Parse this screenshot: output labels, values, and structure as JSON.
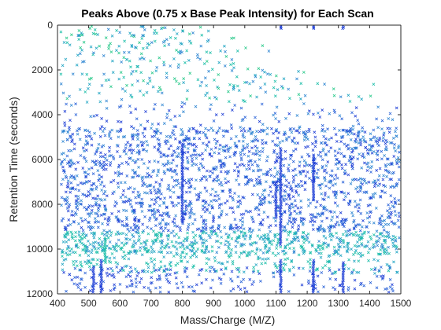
{
  "chart_data": {
    "type": "scatter",
    "title": "Peaks Above (0.75 x Base Peak Intensity) for Each Scan",
    "xlabel": "Mass/Charge (M/Z)",
    "ylabel": "Retention Time (seconds)",
    "xlim": [
      400,
      1500
    ],
    "ylim": [
      0,
      12000
    ],
    "y_reversed": true,
    "grid": false,
    "marker": "x",
    "colormap": [
      "#1f3fd6",
      "#2a63d8",
      "#2f86d2",
      "#24a6c4",
      "#1fbfaa",
      "#29c98a"
    ],
    "xticks": [
      400,
      500,
      600,
      700,
      800,
      900,
      1000,
      1100,
      1200,
      1300,
      1400,
      1500
    ],
    "yticks": [
      0,
      2000,
      4000,
      6000,
      8000,
      10000,
      12000
    ],
    "vertical_streaks": [
      {
        "x": 515,
        "y": [
          10800,
          12000
        ]
      },
      {
        "x": 540,
        "y": [
          10500,
          12000
        ]
      },
      {
        "x": 553,
        "y": [
          9500,
          10600
        ]
      },
      {
        "x": 800,
        "y": [
          5300,
          8800
        ]
      },
      {
        "x": 1115,
        "y": [
          0,
          150
        ]
      },
      {
        "x": 1115,
        "y": [
          5500,
          9800
        ]
      },
      {
        "x": 1115,
        "y": [
          10500,
          12000
        ]
      },
      {
        "x": 1220,
        "y": [
          0,
          150
        ]
      },
      {
        "x": 1220,
        "y": [
          5800,
          7800
        ]
      },
      {
        "x": 1220,
        "y": [
          10500,
          12000
        ]
      },
      {
        "x": 1315,
        "y": [
          0,
          150
        ]
      },
      {
        "x": 1315,
        "y": [
          10600,
          12000
        ]
      },
      {
        "x": 1100,
        "y": [
          7000,
          8600
        ]
      }
    ]
  }
}
